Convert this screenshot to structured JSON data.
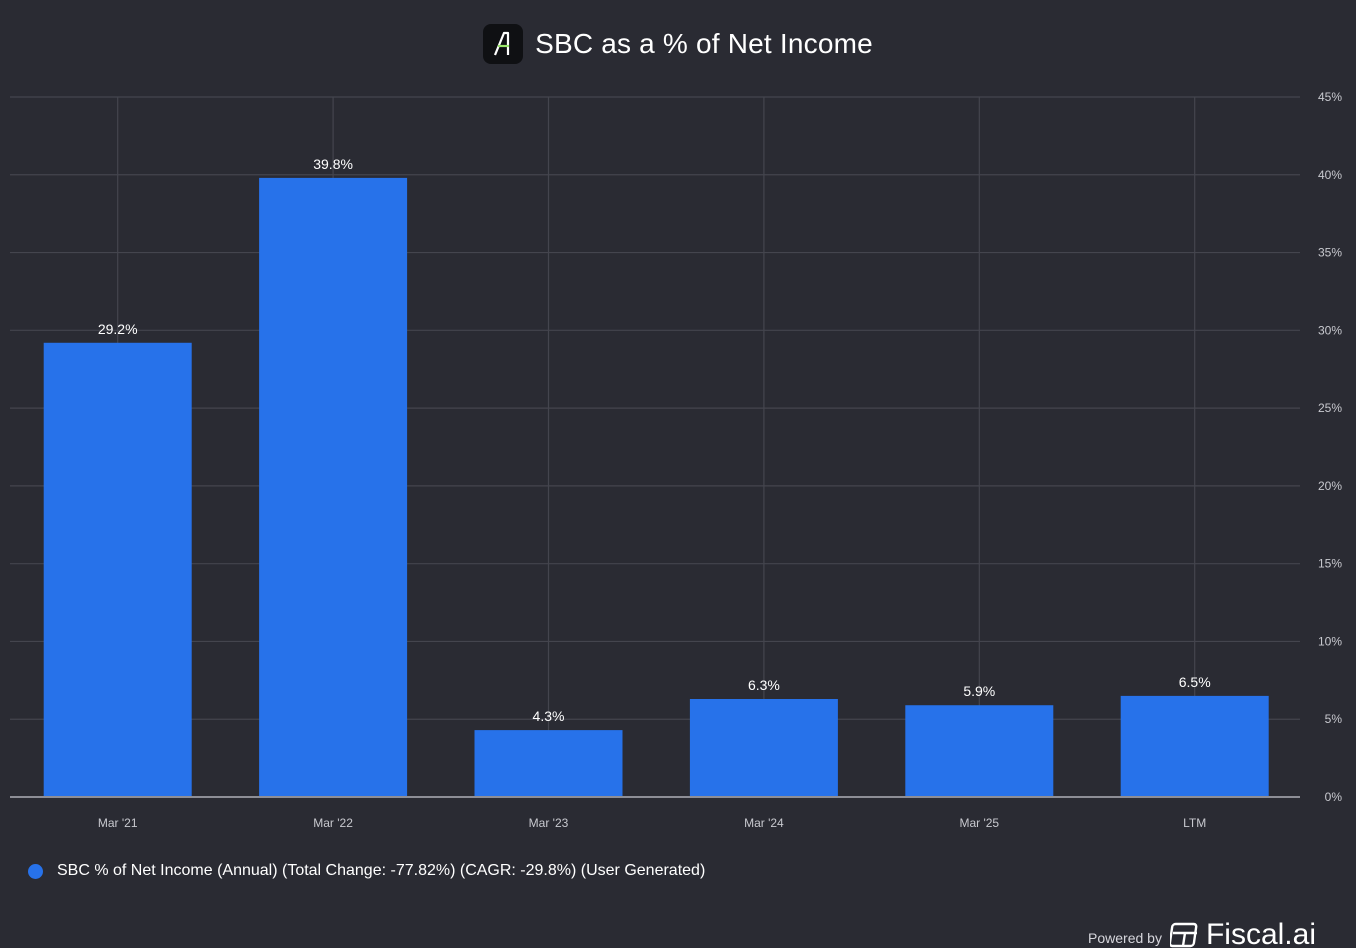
{
  "header": {
    "title": "SBC as a % of Net Income"
  },
  "chart_data": {
    "type": "bar",
    "title": "SBC as a % of Net Income",
    "categories": [
      "Mar '21",
      "Mar '22",
      "Mar '23",
      "Mar '24",
      "Mar '25",
      "LTM"
    ],
    "series": [
      {
        "name": "SBC % of Net Income (Annual) (Total Change: -77.82%) (CAGR: -29.8%) (User Generated)",
        "values": [
          29.2,
          39.8,
          4.3,
          6.3,
          5.9,
          6.5
        ],
        "labels": [
          "29.2%",
          "39.8%",
          "4.3%",
          "6.3%",
          "5.9%",
          "6.5%"
        ]
      }
    ],
    "ylim": [
      0,
      45
    ],
    "yticks": [
      0,
      5,
      10,
      15,
      20,
      25,
      30,
      35,
      40,
      45
    ],
    "ytick_labels": [
      "0%",
      "5%",
      "10%",
      "15%",
      "20%",
      "25%",
      "30%",
      "35%",
      "40%",
      "45%"
    ],
    "y_axis_side": "right",
    "grid": true,
    "legend_position": "bottom-left",
    "xlabel": "",
    "ylabel": ""
  },
  "colors": {
    "background": "#2a2b33",
    "bar": "#2772ea",
    "grid": "#44454e",
    "axis": "#8d8e96",
    "text": "#ffffff",
    "tick_text": "#c8c9cf"
  },
  "footer": {
    "powered_by": "Powered by",
    "brand_name": "Fiscal.ai",
    "brand_icon": "fiscal-ai-logo-icon"
  },
  "logo_icon": "app-logo-icon"
}
